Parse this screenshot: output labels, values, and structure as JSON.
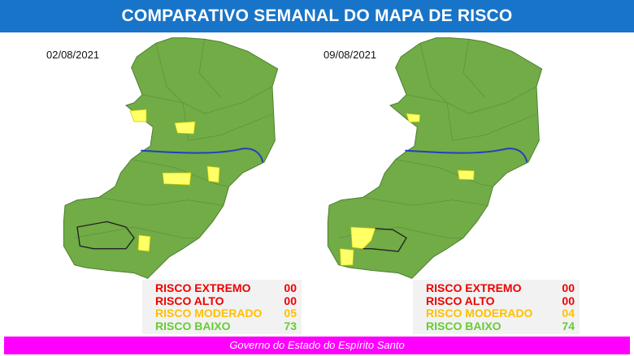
{
  "header": {
    "title": "COMPARATIVO SEMANAL DO MAPA DE RISCO"
  },
  "colors": {
    "extremo": "#ee0000",
    "alto": "#ee0000",
    "moderado": "#ffc000",
    "baixo": "#66cc33",
    "map_green": "#71ac47",
    "map_yellow": "#ffff66",
    "header": "#1874c8",
    "footer": "#ff00ff"
  },
  "maps": [
    {
      "date": "02/08/2021",
      "stats": [
        {
          "label": "RISCO EXTREMO",
          "value": "00"
        },
        {
          "label": "RISCO ALTO",
          "value": "00"
        },
        {
          "label": "RISCO MODERADO",
          "value": "05"
        },
        {
          "label": "RISCO BAIXO",
          "value": "73"
        }
      ]
    },
    {
      "date": "09/08/2021",
      "stats": [
        {
          "label": "RISCO EXTREMO",
          "value": "00"
        },
        {
          "label": "RISCO ALTO",
          "value": "00"
        },
        {
          "label": "RISCO MODERADO",
          "value": "04"
        },
        {
          "label": "RISCO BAIXO",
          "value": "74"
        }
      ]
    }
  ],
  "footer": {
    "text": "Governo do Estado do Espírito Santo"
  }
}
